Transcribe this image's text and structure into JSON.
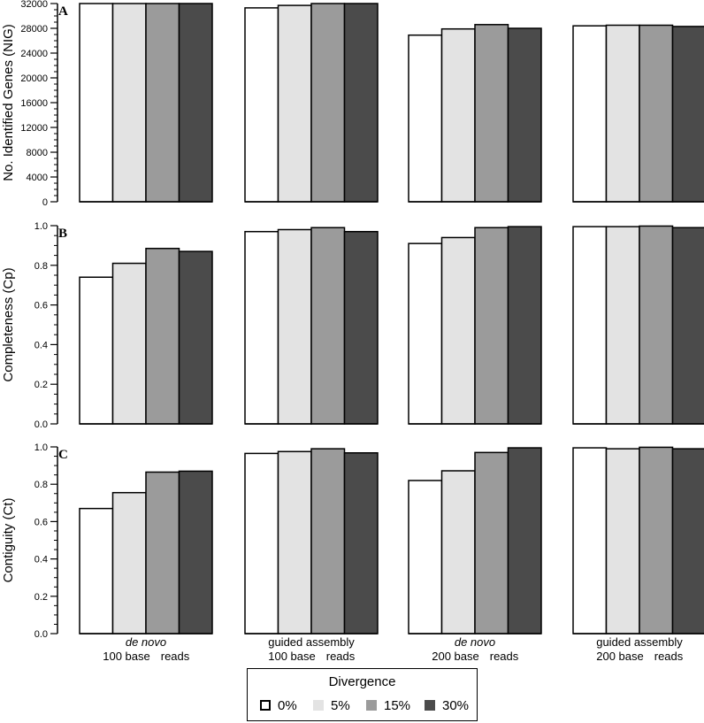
{
  "chart_data": {
    "type": "bar",
    "legend": {
      "title": "Divergence",
      "placement": "bottom-center",
      "entries": [
        {
          "label": "0%",
          "color": "#ffffff"
        },
        {
          "label": "5%",
          "color": "#e3e3e3"
        },
        {
          "label": "15%",
          "color": "#9b9b9b"
        },
        {
          "label": "30%",
          "color": "#4b4b4b"
        }
      ]
    },
    "groups": [
      {
        "line1": "de novo",
        "line1_italic": true,
        "line2a": "100 base",
        "line2b": "reads"
      },
      {
        "line1": "guided assembly",
        "line1_italic": false,
        "line2a": "100 base",
        "line2b": "reads"
      },
      {
        "line1": "de novo",
        "line1_italic": true,
        "line2a": "200 base",
        "line2b": "reads"
      },
      {
        "line1": "guided assembly",
        "line1_italic": false,
        "line2a": "200 base",
        "line2b": "reads"
      }
    ],
    "panels": [
      {
        "letter": "A",
        "ylabel": "No. Identified Genes (NIG)",
        "ylim": [
          0,
          32000
        ],
        "yticks": [
          0,
          4000,
          8000,
          12000,
          16000,
          20000,
          24000,
          28000,
          32000
        ],
        "ytick_labels": [
          "0",
          "4000",
          "8000",
          "12000",
          "16000",
          "20000",
          "24000",
          "28000",
          "32000"
        ],
        "values": [
          [
            32000,
            32000,
            32000,
            32000
          ],
          [
            31300,
            31700,
            32000,
            32000
          ],
          [
            26900,
            27900,
            28600,
            28000
          ],
          [
            28400,
            28500,
            28500,
            28300
          ]
        ]
      },
      {
        "letter": "B",
        "ylabel": "Completeness (Cp)",
        "ylim": [
          0,
          1.0
        ],
        "yticks": [
          0,
          0.2,
          0.4,
          0.6,
          0.8,
          1.0
        ],
        "ytick_labels": [
          "0.0",
          "0.2",
          "0.4",
          "0.6",
          "0.8",
          "1.0"
        ],
        "values": [
          [
            0.74,
            0.81,
            0.885,
            0.87
          ],
          [
            0.97,
            0.98,
            0.99,
            0.97
          ],
          [
            0.91,
            0.94,
            0.99,
            0.995
          ],
          [
            0.995,
            0.995,
            0.998,
            0.99
          ]
        ]
      },
      {
        "letter": "C",
        "ylabel": "Contiguity (Ct)",
        "ylim": [
          0,
          1.0
        ],
        "yticks": [
          0,
          0.2,
          0.4,
          0.6,
          0.8,
          1.0
        ],
        "ytick_labels": [
          "0.0",
          "0.2",
          "0.4",
          "0.6",
          "0.8",
          "1.0"
        ],
        "values": [
          [
            0.67,
            0.755,
            0.865,
            0.87
          ],
          [
            0.965,
            0.975,
            0.99,
            0.968
          ],
          [
            0.82,
            0.872,
            0.97,
            0.995
          ],
          [
            0.995,
            0.99,
            0.998,
            0.99
          ]
        ]
      }
    ]
  }
}
